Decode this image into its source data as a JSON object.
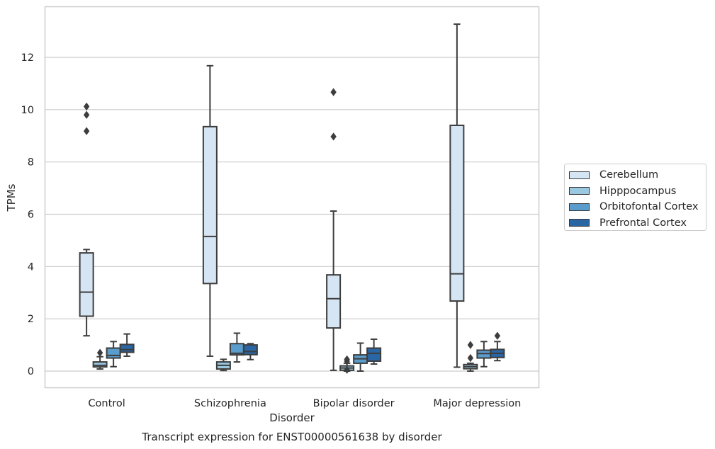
{
  "chart_data": {
    "type": "box",
    "title": "Transcript expression for ENST00000561638 by disorder",
    "xlabel": "Disorder",
    "ylabel": "TPMs",
    "ylim": [
      -0.65,
      13.9
    ],
    "yticks": [
      0,
      2,
      4,
      6,
      8,
      10,
      12
    ],
    "grid": true,
    "legend_position": "right",
    "categories": [
      "Control",
      "Schizophrenia",
      "Bipolar disorder",
      "Major depression"
    ],
    "series": [
      {
        "name": "Cerebellum",
        "color": "#d6e5f3",
        "boxes": [
          {
            "whislo": 1.35,
            "q1": 2.1,
            "med": 3.02,
            "q3": 4.52,
            "whishi": 4.65,
            "fliers": [
              9.18,
              9.8,
              10.12
            ]
          },
          {
            "whislo": 0.57,
            "q1": 3.35,
            "med": 5.15,
            "q3": 9.35,
            "whishi": 11.68,
            "fliers": []
          },
          {
            "whislo": 0.03,
            "q1": 1.65,
            "med": 2.77,
            "q3": 3.68,
            "whishi": 6.12,
            "fliers": [
              8.97,
              10.67
            ]
          },
          {
            "whislo": 0.15,
            "q1": 2.68,
            "med": 3.72,
            "q3": 9.4,
            "whishi": 13.27,
            "fliers": []
          }
        ]
      },
      {
        "name": "Hipppocampus",
        "color": "#9ac8e0",
        "boxes": [
          {
            "whislo": 0.08,
            "q1": 0.16,
            "med": 0.22,
            "q3": 0.35,
            "whishi": 0.55,
            "fliers": [
              0.7
            ]
          },
          {
            "whislo": 0.02,
            "q1": 0.08,
            "med": 0.22,
            "q3": 0.35,
            "whishi": 0.45,
            "fliers": []
          },
          {
            "whislo": 0.0,
            "q1": 0.03,
            "med": 0.12,
            "q3": 0.2,
            "whishi": 0.3,
            "fliers": [
              0.45,
              0.38,
              0.05
            ]
          },
          {
            "whislo": 0.0,
            "q1": 0.09,
            "med": 0.17,
            "q3": 0.25,
            "whishi": 0.3,
            "fliers": [
              0.5,
              1.0
            ]
          }
        ]
      },
      {
        "name": "Orbitofontal Cortex",
        "color": "#5a9ccc",
        "boxes": [
          {
            "whislo": 0.17,
            "q1": 0.5,
            "med": 0.6,
            "q3": 0.88,
            "whishi": 1.13,
            "fliers": []
          },
          {
            "whislo": 0.35,
            "q1": 0.62,
            "med": 0.68,
            "q3": 1.05,
            "whishi": 1.45,
            "fliers": []
          },
          {
            "whislo": 0.0,
            "q1": 0.3,
            "med": 0.47,
            "q3": 0.62,
            "whishi": 1.07,
            "fliers": []
          },
          {
            "whislo": 0.17,
            "q1": 0.5,
            "med": 0.67,
            "q3": 0.8,
            "whishi": 1.13,
            "fliers": []
          }
        ]
      },
      {
        "name": "Prefrontal Cortex",
        "color": "#2a66a4",
        "boxes": [
          {
            "whislo": 0.57,
            "q1": 0.72,
            "med": 0.82,
            "q3": 1.02,
            "whishi": 1.42,
            "fliers": []
          },
          {
            "whislo": 0.44,
            "q1": 0.63,
            "med": 0.75,
            "q3": 1.0,
            "whishi": 1.05,
            "fliers": []
          },
          {
            "whislo": 0.27,
            "q1": 0.38,
            "med": 0.68,
            "q3": 0.88,
            "whishi": 1.22,
            "fliers": []
          },
          {
            "whislo": 0.4,
            "q1": 0.52,
            "med": 0.68,
            "q3": 0.83,
            "whishi": 1.13,
            "fliers": [
              1.35
            ]
          }
        ]
      }
    ]
  }
}
